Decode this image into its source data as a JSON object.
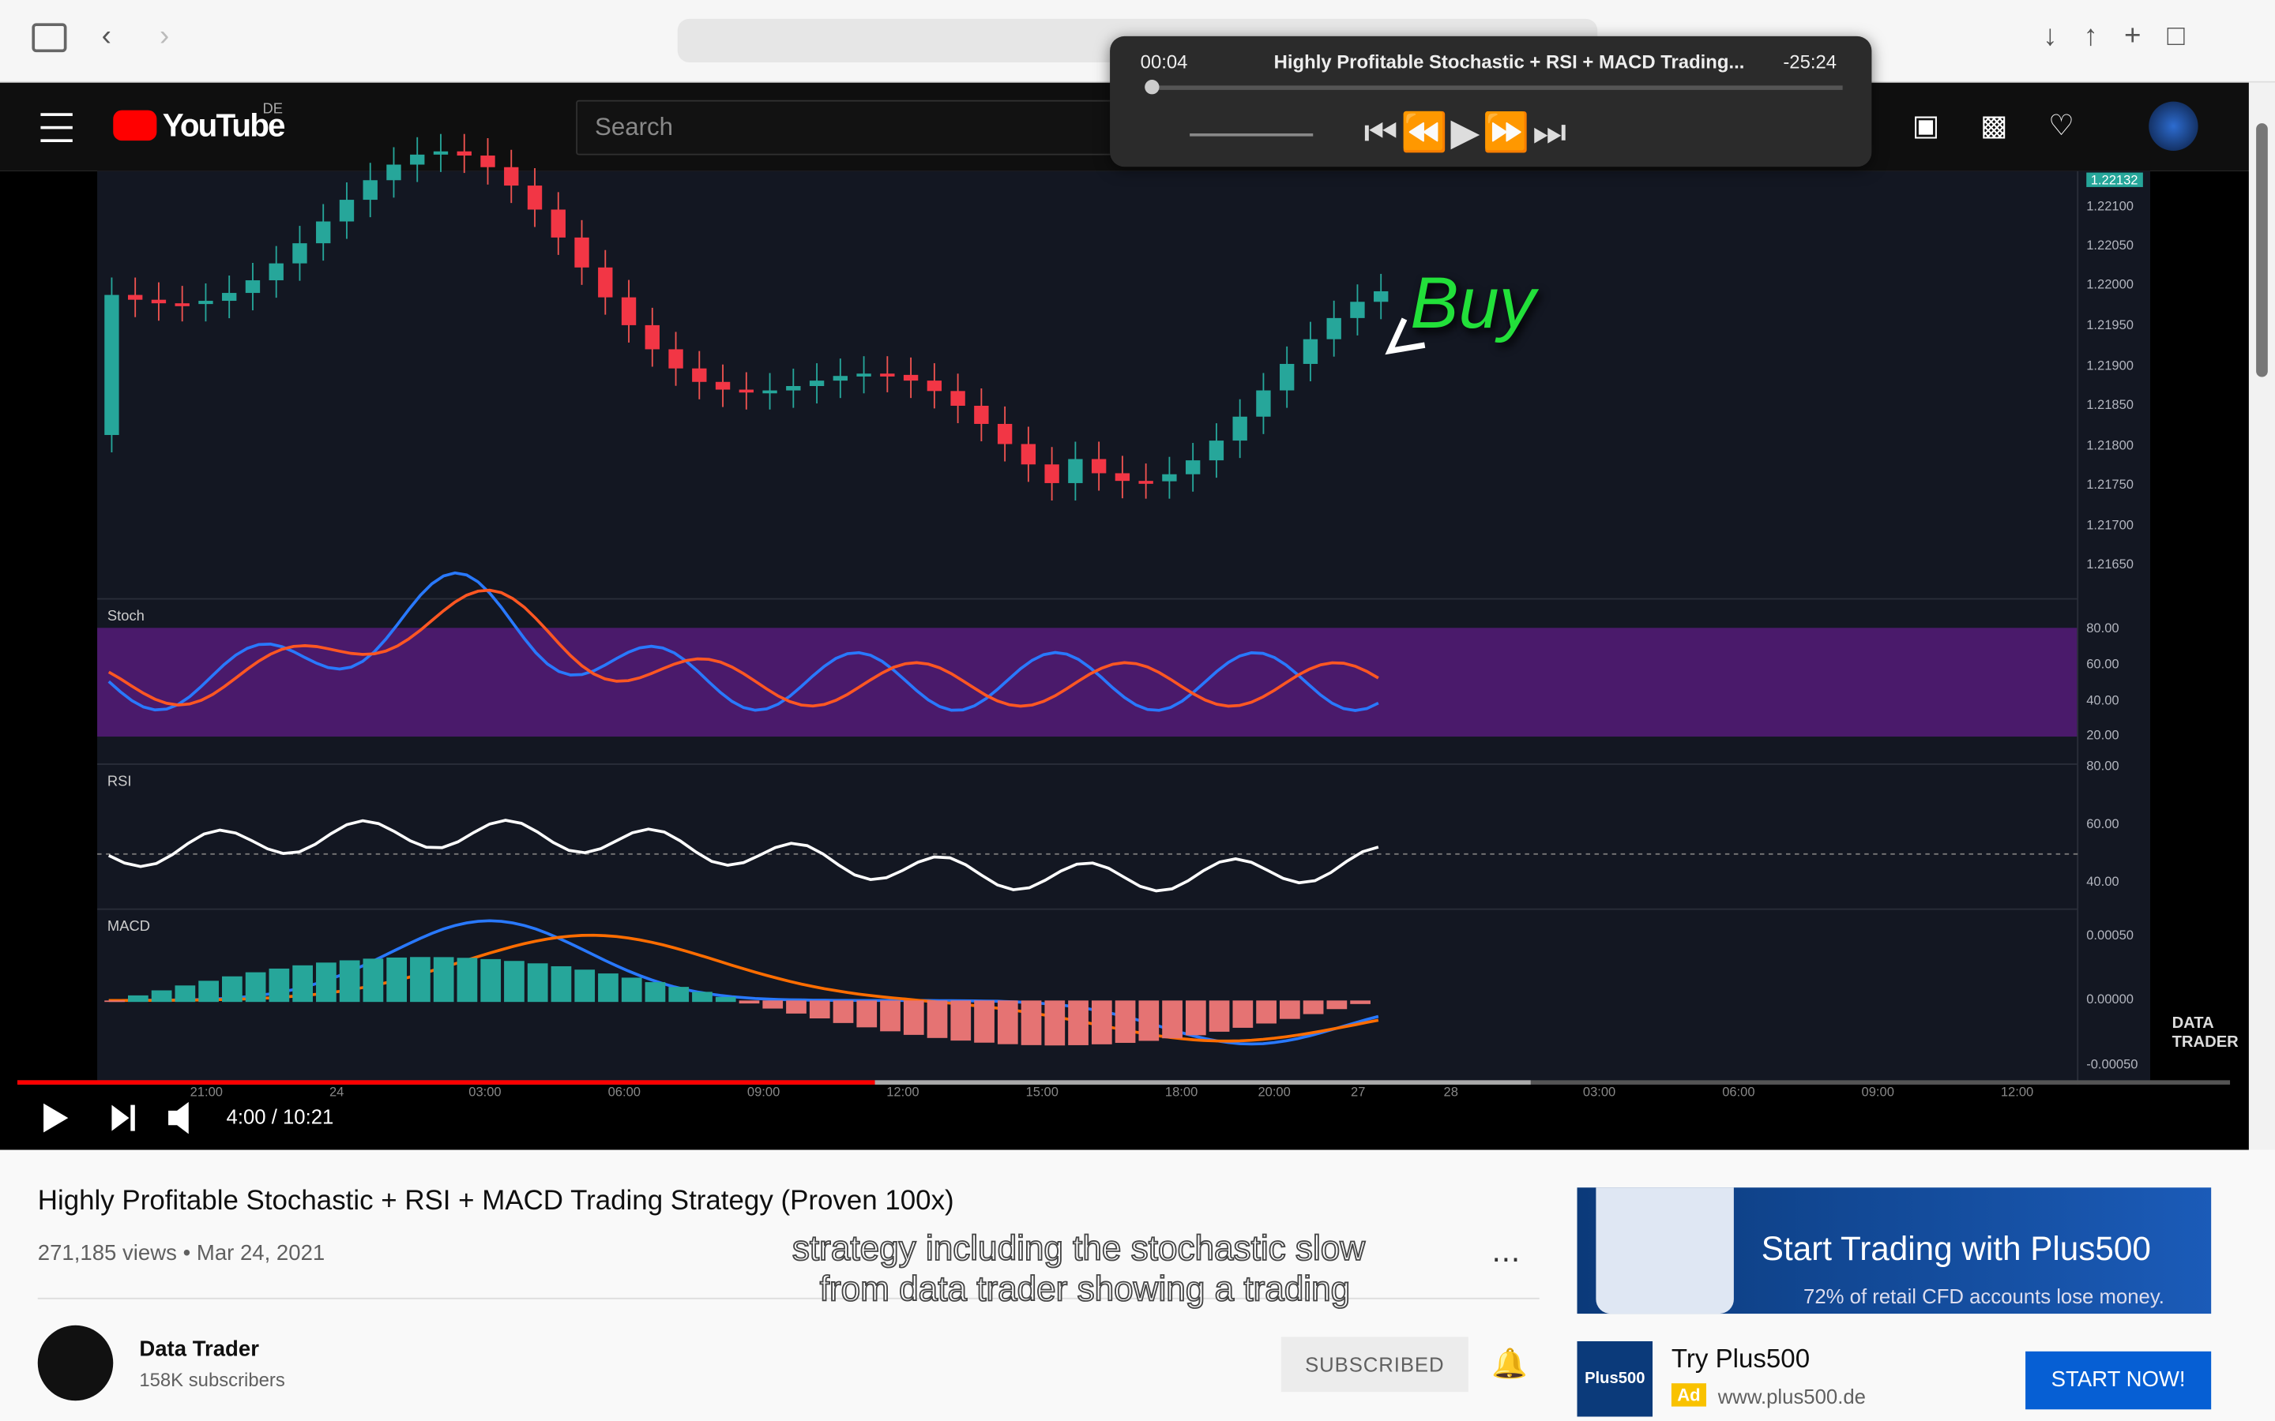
{
  "mini_player": {
    "elapsed": "00:04",
    "title": "Highly Profitable Stochastic + RSI + MACD Trading...",
    "remaining": "-25:24"
  },
  "header": {
    "logo": "YouTube",
    "region": "DE",
    "search_placeholder": "Search"
  },
  "video": {
    "price_labels": [
      "1.22132",
      "1.22100",
      "1.22050",
      "1.22000",
      "1.21950",
      "1.21900",
      "1.21850",
      "1.21800",
      "1.21750",
      "1.21700",
      "1.21650"
    ],
    "panels": [
      "Stoch",
      "RSI",
      "MACD"
    ],
    "stoch_labels": [
      "80.00",
      "60.00",
      "40.00",
      "20.00"
    ],
    "rsi_labels": [
      "80.00",
      "60.00",
      "40.00"
    ],
    "macd_labels": [
      "0.00050",
      "0.00000",
      "-0.00050"
    ],
    "time_labels": [
      "21:00",
      "24",
      "03:00",
      "06:00",
      "09:00",
      "12:00",
      "15:00",
      "18:00",
      "20:00",
      "27",
      "28",
      "03:00",
      "06:00",
      "09:00",
      "12:00"
    ],
    "annotation": "Buy",
    "watermark": "DATA TRADER",
    "time": "4:00 / 10:21",
    "captions": [
      "strategy including the stochastic slow",
      "from data trader showing a trading"
    ]
  },
  "details": {
    "title": "Highly Profitable Stochastic + RSI + MACD Trading Strategy (Proven 100x)",
    "views": "271,185 views",
    "date": "Mar 24, 2021",
    "channel": "Data Trader",
    "subscribers": "158K subscribers",
    "subscribe_button": "SUBSCRIBED"
  },
  "ad": {
    "banner_title": "Start Trading with Plus500",
    "banner_note": "72% of retail CFD accounts lose money.",
    "logo": "Plus500",
    "headline": "Try Plus500",
    "badge": "Ad",
    "url": "www.plus500.de",
    "cta": "START NOW!"
  }
}
